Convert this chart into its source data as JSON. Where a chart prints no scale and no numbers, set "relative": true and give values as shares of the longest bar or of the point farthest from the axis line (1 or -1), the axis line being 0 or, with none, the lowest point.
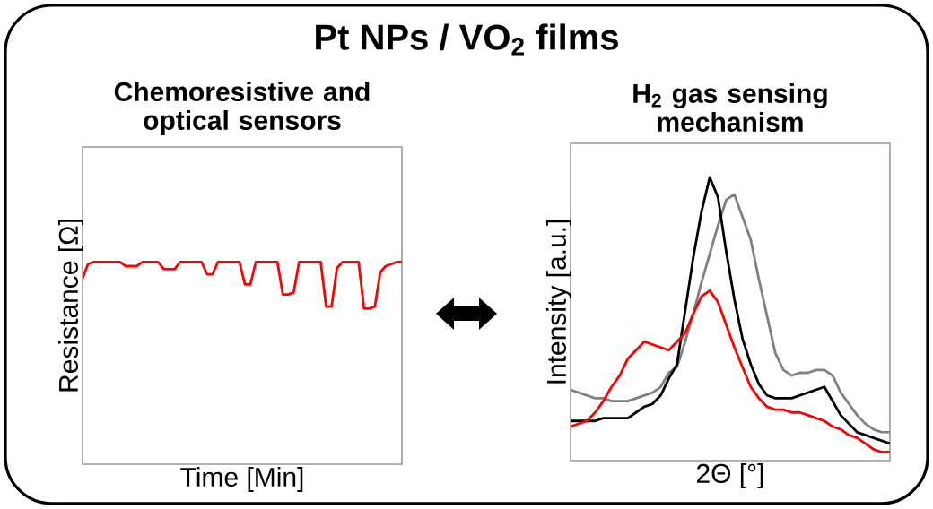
{
  "chart_data": [
    {
      "type": "other",
      "title": "Pt NPs / VO$_{2}$ films"
    },
    {
      "type": "line",
      "title": "Chemoresistive and optical sensors",
      "xlabel": "Time [Min]",
      "ylabel": "Resistance [Ω]",
      "relative": true,
      "categories": [
        null,
        null,
        null,
        null,
        null,
        null,
        null,
        null,
        null,
        null,
        null,
        null,
        null,
        null,
        null,
        null,
        null,
        null,
        null,
        null,
        null,
        null,
        null,
        null,
        null,
        null,
        null,
        null,
        null,
        null,
        null,
        null,
        null,
        null,
        null,
        null,
        null,
        null,
        null,
        null,
        null,
        null,
        null,
        null,
        null,
        null,
        null,
        null,
        null,
        null,
        null,
        null,
        null,
        null,
        null,
        null,
        null,
        null,
        null,
        null
      ],
      "series": [
        {
          "color": "#ff0000",
          "values": [
            0.92,
            0.99,
            1,
            1,
            1,
            1,
            1,
            1,
            0.98,
            0.98,
            0.98,
            1,
            1,
            1,
            1,
            0.965,
            0.965,
            0.965,
            1,
            1,
            1,
            1,
            1,
            0.94,
            0.94,
            1,
            1,
            1,
            1,
            1,
            0.89,
            0.89,
            1,
            1,
            1,
            1,
            1,
            0.84,
            0.84,
            0.85,
            1,
            1,
            1,
            1,
            1,
            0.78,
            0.78,
            0.97,
            1,
            1,
            1,
            1,
            0.77,
            0.77,
            0.78,
            0.95,
            0.98,
            0.99,
            1,
            1
          ]
        }
      ]
    },
    {
      "type": "line",
      "title": "H$_{2}$ gas sensing mechanism",
      "xlabel": "2Θ [°]",
      "ylabel": "Intensity [a.u.]",
      "relative": true,
      "categories": [
        null,
        null,
        null,
        null,
        null,
        null,
        null,
        null,
        null,
        null,
        null,
        null,
        null,
        null,
        null,
        null,
        null,
        null,
        null,
        null,
        null,
        null,
        null,
        null,
        null,
        null,
        null,
        null,
        null,
        null,
        null,
        null,
        null,
        null,
        null,
        null,
        null,
        null,
        null,
        null
      ],
      "series": [
        {
          "color": "#808080",
          "values": [
            0.25,
            0.24,
            0.23,
            0.22,
            0.22,
            0.21,
            0.21,
            0.21,
            0.22,
            0.23,
            0.24,
            0.26,
            0.31,
            0.33,
            0.42,
            0.52,
            0.63,
            0.73,
            0.83,
            0.92,
            0.94,
            0.86,
            0.78,
            0.64,
            0.51,
            0.38,
            0.32,
            0.3,
            0.31,
            0.31,
            0.32,
            0.32,
            0.3,
            0.24,
            0.2,
            0.16,
            0.13,
            0.11,
            0.1,
            0.1
          ]
        },
        {
          "color": "#000000",
          "values": [
            0.14,
            0.14,
            0.14,
            0.14,
            0.15,
            0.15,
            0.15,
            0.15,
            0.17,
            0.19,
            0.2,
            0.23,
            0.29,
            0.34,
            0.53,
            0.72,
            0.88,
            1,
            0.93,
            0.74,
            0.57,
            0.43,
            0.34,
            0.27,
            0.23,
            0.22,
            0.22,
            0.22,
            0.23,
            0.24,
            0.25,
            0.26,
            0.21,
            0.16,
            0.13,
            0.1,
            0.09,
            0.08,
            0.07,
            0.06
          ]
        },
        {
          "color": "#ff0000",
          "values": [
            0.12,
            0.13,
            0.14,
            0.17,
            0.21,
            0.26,
            0.3,
            0.36,
            0.39,
            0.42,
            0.41,
            0.4,
            0.39,
            0.42,
            0.45,
            0.52,
            0.58,
            0.6,
            0.56,
            0.48,
            0.4,
            0.33,
            0.26,
            0.22,
            0.19,
            0.18,
            0.18,
            0.17,
            0.17,
            0.16,
            0.15,
            0.14,
            0.12,
            0.11,
            0.09,
            0.08,
            0.06,
            0.04,
            0.03,
            0.03
          ]
        }
      ]
    }
  ]
}
